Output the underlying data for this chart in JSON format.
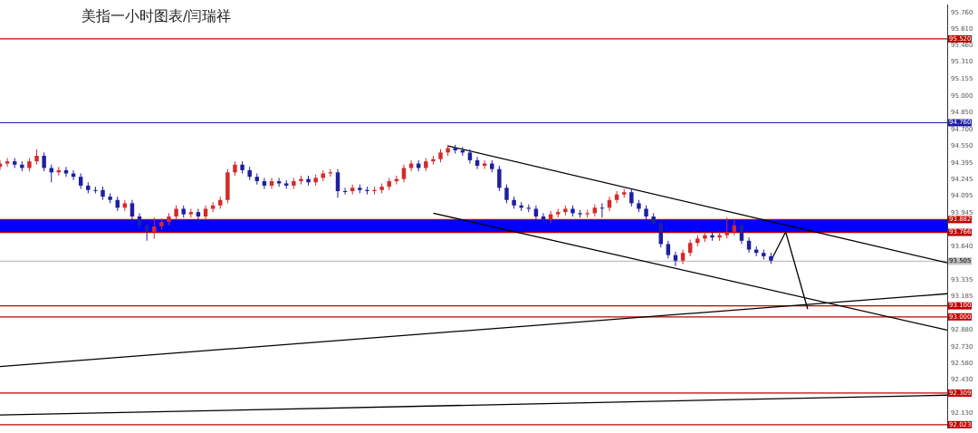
{
  "chart_data": {
    "type": "candlestick",
    "title": "美指一小时图表/闫瑞祥",
    "categories": [
      null,
      null,
      null,
      null,
      null,
      null,
      null,
      null,
      null,
      null,
      null,
      null,
      null,
      null,
      null,
      null,
      null,
      null,
      null,
      null,
      null,
      null,
      null,
      null,
      null,
      null,
      null,
      null,
      null,
      null,
      null,
      null,
      null,
      null,
      null,
      null,
      null,
      null,
      null,
      null,
      null,
      null,
      null,
      null,
      null,
      null,
      null,
      null,
      null,
      null,
      null,
      null,
      null,
      null,
      null,
      null,
      null,
      null,
      null,
      null,
      null,
      null,
      null,
      null,
      null,
      null,
      null,
      null,
      null,
      null,
      null,
      null,
      null,
      null,
      null,
      null,
      null,
      null,
      null,
      null,
      null,
      null,
      null,
      null,
      null,
      null,
      null,
      null,
      null,
      null,
      null,
      null,
      null,
      null,
      null,
      null,
      null,
      null,
      null,
      null,
      null,
      null,
      null,
      null,
      null,
      null,
      null,
      null,
      null,
      null,
      null,
      null,
      null,
      null,
      null,
      null,
      null,
      null,
      null,
      null,
      null,
      null,
      null,
      null,
      null,
      null,
      null,
      null,
      null,
      null
    ],
    "ohlc": [
      [
        94.36,
        94.42,
        94.33,
        94.39
      ],
      [
        94.39,
        94.44,
        94.36,
        94.41
      ],
      [
        94.41,
        94.44,
        94.35,
        94.38
      ],
      [
        94.38,
        94.41,
        94.32,
        94.35
      ],
      [
        94.35,
        94.44,
        94.32,
        94.41
      ],
      [
        94.41,
        94.52,
        94.38,
        94.46
      ],
      [
        94.46,
        94.49,
        94.32,
        94.35
      ],
      [
        94.35,
        94.38,
        94.22,
        94.31
      ],
      [
        94.31,
        94.36,
        94.28,
        94.33
      ],
      [
        94.33,
        94.36,
        94.27,
        94.3
      ],
      [
        94.3,
        94.33,
        94.24,
        94.27
      ],
      [
        94.27,
        94.3,
        94.16,
        94.19
      ],
      [
        94.19,
        94.22,
        94.12,
        94.15
      ],
      [
        94.15,
        94.18,
        94.12,
        94.15
      ],
      [
        94.15,
        94.18,
        94.06,
        94.09
      ],
      [
        94.09,
        94.12,
        94.03,
        94.06
      ],
      [
        94.06,
        94.09,
        93.96,
        93.99
      ],
      [
        93.99,
        94.06,
        93.96,
        94.03
      ],
      [
        94.03,
        94.06,
        93.88,
        93.91
      ],
      [
        93.91,
        93.94,
        93.8,
        93.83
      ],
      [
        93.83,
        93.86,
        93.69,
        93.77
      ],
      [
        93.77,
        93.9,
        93.71,
        93.82
      ],
      [
        93.82,
        93.89,
        93.79,
        93.86
      ],
      [
        93.86,
        93.94,
        93.83,
        93.91
      ],
      [
        93.91,
        94.01,
        93.88,
        93.98
      ],
      [
        93.98,
        94.01,
        93.9,
        93.93
      ],
      [
        93.93,
        93.98,
        93.9,
        93.95
      ],
      [
        93.95,
        93.98,
        93.84,
        93.91
      ],
      [
        93.91,
        94.01,
        93.88,
        93.98
      ],
      [
        93.98,
        94.04,
        93.95,
        94.01
      ],
      [
        94.01,
        94.09,
        93.98,
        94.06
      ],
      [
        94.06,
        94.34,
        94.03,
        94.31
      ],
      [
        94.31,
        94.41,
        94.28,
        94.38
      ],
      [
        94.38,
        94.41,
        94.3,
        94.33
      ],
      [
        94.33,
        94.36,
        94.24,
        94.27
      ],
      [
        94.27,
        94.3,
        94.2,
        94.23
      ],
      [
        94.23,
        94.26,
        94.16,
        94.19
      ],
      [
        94.19,
        94.26,
        94.16,
        94.23
      ],
      [
        94.23,
        94.26,
        94.18,
        94.21
      ],
      [
        94.21,
        94.24,
        94.16,
        94.19
      ],
      [
        94.19,
        94.26,
        94.16,
        94.23
      ],
      [
        94.23,
        94.28,
        94.2,
        94.25
      ],
      [
        94.25,
        94.28,
        94.19,
        94.22
      ],
      [
        94.22,
        94.29,
        94.19,
        94.26
      ],
      [
        94.26,
        94.33,
        94.23,
        94.3
      ],
      [
        94.3,
        94.34,
        94.27,
        94.31
      ],
      [
        94.31,
        94.34,
        94.08,
        94.14
      ],
      [
        94.14,
        94.17,
        94.11,
        94.14
      ],
      [
        94.14,
        94.2,
        94.11,
        94.17
      ],
      [
        94.17,
        94.2,
        94.12,
        94.15
      ],
      [
        94.15,
        94.18,
        94.11,
        94.14
      ],
      [
        94.14,
        94.18,
        94.11,
        94.15
      ],
      [
        94.15,
        94.21,
        94.12,
        94.18
      ],
      [
        94.18,
        94.26,
        94.15,
        94.23
      ],
      [
        94.23,
        94.28,
        94.2,
        94.25
      ],
      [
        94.25,
        94.38,
        94.22,
        94.35
      ],
      [
        94.35,
        94.42,
        94.32,
        94.39
      ],
      [
        94.39,
        94.42,
        94.32,
        94.35
      ],
      [
        94.35,
        94.44,
        94.32,
        94.41
      ],
      [
        94.41,
        94.46,
        94.38,
        94.43
      ],
      [
        94.43,
        94.52,
        94.4,
        94.49
      ],
      [
        94.49,
        94.56,
        94.46,
        94.53
      ],
      [
        94.53,
        94.56,
        94.48,
        94.51
      ],
      [
        94.51,
        94.54,
        94.46,
        94.49
      ],
      [
        94.49,
        94.52,
        94.39,
        94.42
      ],
      [
        94.42,
        94.45,
        94.34,
        94.37
      ],
      [
        94.37,
        94.42,
        94.34,
        94.39
      ],
      [
        94.39,
        94.42,
        94.31,
        94.34
      ],
      [
        94.34,
        94.37,
        94.14,
        94.17
      ],
      [
        94.17,
        94.2,
        94.03,
        94.06
      ],
      [
        94.06,
        94.09,
        93.98,
        94.01
      ],
      [
        94.01,
        94.04,
        93.96,
        93.99
      ],
      [
        93.99,
        94.02,
        93.95,
        93.98
      ],
      [
        93.98,
        94.01,
        93.88,
        93.91
      ],
      [
        93.91,
        93.94,
        93.85,
        93.88
      ],
      [
        93.88,
        93.96,
        93.85,
        93.93
      ],
      [
        93.93,
        93.98,
        93.9,
        93.95
      ],
      [
        93.95,
        94.01,
        93.92,
        93.98
      ],
      [
        93.98,
        94.01,
        93.91,
        93.94
      ],
      [
        93.94,
        93.97,
        93.9,
        93.93
      ],
      [
        93.93,
        93.97,
        93.9,
        93.94
      ],
      [
        93.94,
        94.02,
        93.91,
        93.99
      ],
      [
        93.99,
        94.03,
        93.9,
        93.99
      ],
      [
        93.99,
        94.09,
        93.96,
        94.06
      ],
      [
        94.06,
        94.14,
        94.03,
        94.11
      ],
      [
        94.11,
        94.16,
        94.08,
        94.13
      ],
      [
        94.13,
        94.16,
        94.0,
        94.03
      ],
      [
        94.03,
        94.06,
        93.95,
        93.98
      ],
      [
        93.98,
        94.01,
        93.88,
        93.91
      ],
      [
        93.91,
        93.94,
        93.82,
        93.85
      ],
      [
        93.85,
        93.88,
        93.63,
        93.66
      ],
      [
        93.66,
        93.69,
        93.53,
        93.56
      ],
      [
        93.56,
        93.59,
        93.46,
        93.51
      ],
      [
        93.51,
        93.61,
        93.48,
        93.58
      ],
      [
        93.58,
        93.7,
        93.55,
        93.67
      ],
      [
        93.67,
        93.74,
        93.64,
        93.71
      ],
      [
        93.71,
        93.77,
        93.68,
        93.74
      ],
      [
        93.74,
        93.77,
        93.69,
        93.72
      ],
      [
        93.72,
        93.77,
        93.69,
        93.74
      ],
      [
        93.74,
        93.9,
        93.71,
        93.77
      ],
      [
        93.77,
        93.88,
        93.74,
        93.83
      ],
      [
        93.83,
        93.86,
        93.66,
        93.69
      ],
      [
        93.69,
        93.72,
        93.58,
        93.61
      ],
      [
        93.61,
        93.64,
        93.55,
        93.58
      ],
      [
        93.58,
        93.61,
        93.52,
        93.55
      ],
      [
        93.55,
        93.58,
        93.48,
        93.51
      ],
      null,
      null,
      null,
      null,
      null,
      null,
      null,
      null,
      null,
      null,
      null,
      null,
      null,
      null,
      null,
      null,
      null,
      null,
      null,
      null,
      null,
      null,
      null,
      null
    ],
    "colors": [
      "#d42a2a",
      "#d42a2a",
      "#1f1fa0",
      "#1f1fa0",
      "#d42a2a",
      "#d42a2a",
      "#1f1fa0",
      "#1f1fa0",
      "#d42a2a",
      "#1f1fa0",
      "#1f1fa0",
      "#1f1fa0",
      "#1f1fa0",
      "#1f1fa0",
      "#1f1fa0",
      "#1f1fa0",
      "#1f1fa0",
      "#d42a2a",
      "#1f1fa0",
      "#1f1fa0",
      "#1f1fa0",
      "#d42a2a",
      "#d42a2a",
      "#d42a2a",
      "#d42a2a",
      "#1f1fa0",
      "#d42a2a",
      "#1f1fa0",
      "#d42a2a",
      "#d42a2a",
      "#d42a2a",
      "#d42a2a",
      "#d42a2a",
      "#1f1fa0",
      "#1f1fa0",
      "#1f1fa0",
      "#1f1fa0",
      "#d42a2a",
      "#1f1fa0",
      "#1f1fa0",
      "#d42a2a",
      "#d42a2a",
      "#1f1fa0",
      "#d42a2a",
      "#d42a2a",
      "#d42a2a",
      "#1f1fa0",
      "#1f1fa0",
      "#d42a2a",
      "#1f1fa0",
      "#1f1fa0",
      "#d42a2a",
      "#d42a2a",
      "#d42a2a",
      "#d42a2a",
      "#d42a2a",
      "#d42a2a",
      "#1f1fa0",
      "#d42a2a",
      "#d42a2a",
      "#d42a2a",
      "#d42a2a",
      "#1f1fa0",
      "#1f1fa0",
      "#1f1fa0",
      "#1f1fa0",
      "#d42a2a",
      "#1f1fa0",
      "#1f1fa0",
      "#1f1fa0",
      "#1f1fa0",
      "#1f1fa0",
      "#1f1fa0",
      "#1f1fa0",
      "#1f1fa0",
      "#d42a2a",
      "#d42a2a",
      "#d42a2a",
      "#1f1fa0",
      "#1f1fa0",
      "#d42a2a",
      "#d42a2a",
      "#1f1fa0",
      "#d42a2a",
      "#d42a2a",
      "#d42a2a",
      "#1f1fa0",
      "#1f1fa0",
      "#1f1fa0",
      "#1f1fa0",
      "#1f1fa0",
      "#1f1fa0",
      "#1f1fa0",
      "#d42a2a",
      "#d42a2a",
      "#d42a2a",
      "#d42a2a",
      "#1f1fa0",
      "#d42a2a",
      "#d42a2a",
      "#d42a2a",
      "#1f1fa0",
      "#1f1fa0",
      "#1f1fa0",
      "#1f1fa0",
      "#1f1fa0",
      null,
      null,
      null,
      null,
      null,
      null,
      null,
      null,
      null,
      null,
      null,
      null,
      null,
      null,
      null,
      null,
      null,
      null,
      null,
      null,
      null,
      null,
      null,
      null
    ],
    "series": [
      {
        "type": "line",
        "color": "#000000",
        "values": [
          null,
          null,
          null,
          null,
          null,
          null,
          null,
          null,
          null,
          null,
          null,
          null,
          null,
          null,
          null,
          null,
          null,
          null,
          null,
          null,
          null,
          null,
          null,
          null,
          null,
          null,
          null,
          null,
          null,
          null,
          null,
          null,
          null,
          null,
          null,
          null,
          null,
          null,
          null,
          null,
          null,
          null,
          null,
          null,
          null,
          null,
          null,
          null,
          null,
          null,
          null,
          null,
          null,
          null,
          null,
          null,
          null,
          null,
          null,
          null,
          null,
          94.55,
          null,
          null,
          null,
          null,
          null,
          null,
          null,
          null,
          null,
          null,
          null,
          null,
          null,
          null,
          null,
          null,
          null,
          null,
          null,
          null,
          null,
          null,
          null,
          null,
          null,
          null,
          null,
          null,
          null,
          null,
          null,
          null,
          null,
          null,
          null,
          null,
          null,
          null,
          null,
          null,
          null,
          null,
          null,
          null,
          null,
          null,
          null,
          null,
          null,
          null,
          null,
          null,
          null,
          null,
          null,
          null,
          null,
          null,
          null,
          null,
          null,
          null,
          null,
          null,
          null,
          null,
          null,
          93.49
        ]
      },
      {
        "type": "line",
        "color": "#000000",
        "values": [
          null,
          null,
          null,
          null,
          null,
          null,
          null,
          null,
          null,
          null,
          null,
          null,
          null,
          null,
          null,
          null,
          null,
          null,
          null,
          null,
          null,
          null,
          null,
          null,
          null,
          null,
          null,
          null,
          null,
          null,
          null,
          null,
          null,
          null,
          null,
          null,
          null,
          null,
          null,
          null,
          null,
          null,
          null,
          null,
          null,
          null,
          null,
          null,
          null,
          null,
          null,
          null,
          null,
          null,
          null,
          null,
          null,
          null,
          null,
          93.94,
          null,
          null,
          null,
          null,
          null,
          null,
          null,
          null,
          null,
          null,
          null,
          null,
          null,
          null,
          null,
          null,
          null,
          null,
          null,
          null,
          null,
          null,
          null,
          null,
          null,
          null,
          null,
          null,
          null,
          null,
          null,
          null,
          null,
          null,
          null,
          null,
          null,
          null,
          null,
          null,
          null,
          null,
          null,
          null,
          null,
          null,
          null,
          null,
          null,
          null,
          null,
          null,
          null,
          null,
          null,
          null,
          null,
          null,
          null,
          null,
          null,
          null,
          null,
          null,
          null,
          null,
          null,
          null,
          null,
          92.88
        ]
      },
      {
        "type": "line",
        "color": "#000000",
        "values": [
          92.55,
          null,
          null,
          null,
          null,
          null,
          null,
          null,
          null,
          null,
          null,
          null,
          null,
          null,
          null,
          null,
          null,
          null,
          null,
          null,
          null,
          null,
          null,
          null,
          null,
          null,
          null,
          null,
          null,
          null,
          null,
          null,
          null,
          null,
          null,
          null,
          null,
          null,
          null,
          null,
          null,
          null,
          null,
          null,
          null,
          null,
          null,
          null,
          null,
          null,
          null,
          null,
          null,
          null,
          null,
          null,
          null,
          null,
          null,
          null,
          null,
          null,
          null,
          null,
          null,
          null,
          null,
          null,
          null,
          null,
          null,
          null,
          null,
          null,
          null,
          null,
          null,
          null,
          null,
          null,
          null,
          null,
          null,
          null,
          null,
          null,
          null,
          null,
          null,
          null,
          null,
          null,
          null,
          null,
          null,
          null,
          null,
          null,
          null,
          null,
          null,
          null,
          null,
          null,
          null,
          null,
          null,
          null,
          null,
          null,
          null,
          null,
          null,
          null,
          null,
          null,
          null,
          null,
          null,
          null,
          null,
          null,
          null,
          null,
          null,
          null,
          null,
          null,
          null,
          93.21
        ]
      },
      {
        "type": "line",
        "color": "#000000",
        "values": [
          92.11,
          null,
          null,
          null,
          null,
          null,
          null,
          null,
          null,
          null,
          null,
          null,
          null,
          null,
          null,
          null,
          null,
          null,
          null,
          null,
          null,
          null,
          null,
          null,
          null,
          null,
          null,
          null,
          null,
          null,
          null,
          null,
          null,
          null,
          null,
          null,
          null,
          null,
          null,
          null,
          null,
          null,
          null,
          null,
          null,
          null,
          null,
          null,
          null,
          null,
          null,
          null,
          null,
          null,
          null,
          null,
          null,
          null,
          null,
          null,
          null,
          null,
          null,
          null,
          null,
          null,
          null,
          null,
          null,
          null,
          null,
          null,
          null,
          null,
          null,
          null,
          null,
          null,
          null,
          null,
          null,
          null,
          null,
          null,
          null,
          null,
          null,
          null,
          null,
          null,
          null,
          null,
          null,
          null,
          null,
          null,
          null,
          null,
          null,
          null,
          null,
          null,
          null,
          null,
          null,
          null,
          null,
          null,
          null,
          null,
          null,
          null,
          null,
          null,
          null,
          null,
          null,
          null,
          null,
          null,
          null,
          null,
          null,
          null,
          null,
          null,
          null,
          null,
          null,
          92.29
        ]
      },
      {
        "type": "line",
        "color": "#000000",
        "values": [
          null,
          null,
          null,
          null,
          null,
          null,
          null,
          null,
          null,
          null,
          null,
          null,
          null,
          null,
          null,
          null,
          null,
          null,
          null,
          null,
          null,
          null,
          null,
          null,
          null,
          null,
          null,
          null,
          null,
          null,
          null,
          null,
          null,
          null,
          null,
          null,
          null,
          null,
          null,
          null,
          null,
          null,
          null,
          null,
          null,
          null,
          null,
          null,
          null,
          null,
          null,
          null,
          null,
          null,
          null,
          null,
          null,
          null,
          null,
          null,
          null,
          null,
          null,
          null,
          null,
          null,
          null,
          null,
          null,
          null,
          null,
          null,
          null,
          null,
          null,
          null,
          null,
          null,
          null,
          null,
          null,
          null,
          null,
          null,
          null,
          null,
          null,
          null,
          null,
          null,
          null,
          null,
          null,
          null,
          null,
          null,
          null,
          null,
          null,
          null,
          null,
          null,
          null,
          null,
          null,
          93.51,
          null,
          93.77,
          null,
          null,
          93.07,
          null,
          null,
          null,
          null,
          null,
          null,
          null,
          null,
          null,
          null,
          null,
          null,
          null,
          null,
          null,
          null,
          null,
          null,
          null
        ]
      }
    ],
    "ylim": [
      91.99,
      95.83
    ],
    "yticks": [
      {
        "value": 95.76,
        "label": "95.760"
      },
      {
        "value": 95.61,
        "label": "95.610"
      },
      {
        "value": 95.46,
        "label": "95.460"
      },
      {
        "value": 95.31,
        "label": "95.310"
      },
      {
        "value": 95.155,
        "label": "95.155"
      },
      {
        "value": 95.0,
        "label": "95.000"
      },
      {
        "value": 94.85,
        "label": "94.850"
      },
      {
        "value": 94.7,
        "label": "94.700"
      },
      {
        "value": 94.55,
        "label": "94.550"
      },
      {
        "value": 94.395,
        "label": "94.395"
      },
      {
        "value": 94.245,
        "label": "94.245"
      },
      {
        "value": 94.095,
        "label": "94.095"
      },
      {
        "value": 93.945,
        "label": "93.945"
      },
      {
        "value": 93.64,
        "label": "93.640"
      },
      {
        "value": 93.335,
        "label": "93.335"
      },
      {
        "value": 93.185,
        "label": "93.185"
      },
      {
        "value": 92.88,
        "label": "92.880"
      },
      {
        "value": 92.73,
        "label": "92.730"
      },
      {
        "value": 92.58,
        "label": "92.580"
      },
      {
        "value": 92.43,
        "label": "92.430"
      },
      {
        "value": 92.13,
        "label": "92.130"
      }
    ],
    "tick_labels": "y",
    "bands": [
      {
        "axis": "y",
        "from": 93.766,
        "to": 93.882,
        "color": "#0000ff"
      }
    ],
    "ref_lines": [
      {
        "axis": "y",
        "value": 95.52,
        "label": "95.520",
        "color": "#c00000"
      },
      {
        "axis": "y",
        "value": 94.76,
        "label": "94.760",
        "color": "#1f1fa0"
      },
      {
        "axis": "y",
        "value": 93.882,
        "label": "93.882",
        "color": "#c00000"
      },
      {
        "axis": "y",
        "value": 93.766,
        "label": "93.766",
        "color": "#c00000"
      },
      {
        "axis": "y",
        "value": 93.505,
        "label": "93.505",
        "color": "#c0c0c0"
      },
      {
        "axis": "y",
        "value": 93.1,
        "label": "93.100",
        "color": "#c00000"
      },
      {
        "axis": "y",
        "value": 93.0,
        "label": "93.000",
        "color": "#c00000"
      },
      {
        "axis": "y",
        "value": 92.309,
        "label": "92.309",
        "color": "#c00000"
      },
      {
        "axis": "y",
        "value": 92.023,
        "label": "92.023",
        "color": "#c00000"
      }
    ],
    "grid": false,
    "legend": false
  }
}
